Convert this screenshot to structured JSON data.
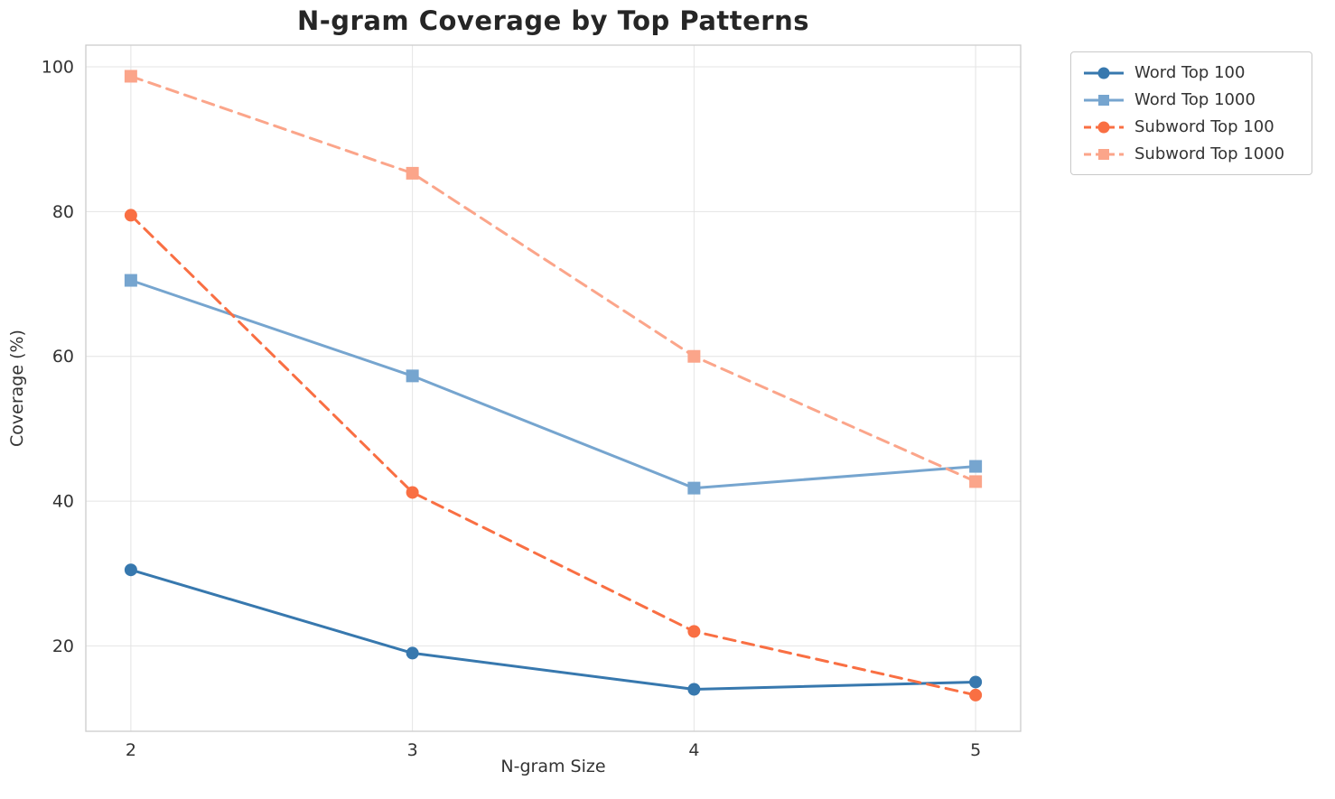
{
  "chart_data": {
    "type": "line",
    "title": "N-gram Coverage by Top Patterns",
    "xlabel": "N-gram Size",
    "ylabel": "Coverage (%)",
    "x": [
      2,
      3,
      4,
      5
    ],
    "xticks": [
      "2",
      "3",
      "4",
      "5"
    ],
    "yticks": [
      20,
      40,
      60,
      80,
      100
    ],
    "xlim": [
      1.84,
      5.16
    ],
    "ylim": [
      8.2,
      103
    ],
    "grid": true,
    "legend_position": "outside-top-right",
    "series": [
      {
        "name": "Word Top 100",
        "values": [
          30.5,
          19.0,
          14.0,
          15.0
        ],
        "color": "#3778ae",
        "line_style": "solid",
        "marker": "circle"
      },
      {
        "name": "Word Top 1000",
        "values": [
          70.5,
          57.3,
          41.8,
          44.8
        ],
        "color": "#76a5cf",
        "line_style": "solid",
        "marker": "square"
      },
      {
        "name": "Subword Top 100",
        "values": [
          79.5,
          41.2,
          22.0,
          13.2
        ],
        "color": "#f96f43",
        "line_style": "dashed",
        "marker": "circle"
      },
      {
        "name": "Subword Top 1000",
        "values": [
          98.7,
          85.3,
          60.0,
          42.7
        ],
        "color": "#fba58a",
        "line_style": "dashed",
        "marker": "square"
      }
    ],
    "colors": {
      "grid": "#e4e4e4",
      "spine": "#cccccc",
      "tick_text": "#333333"
    }
  }
}
